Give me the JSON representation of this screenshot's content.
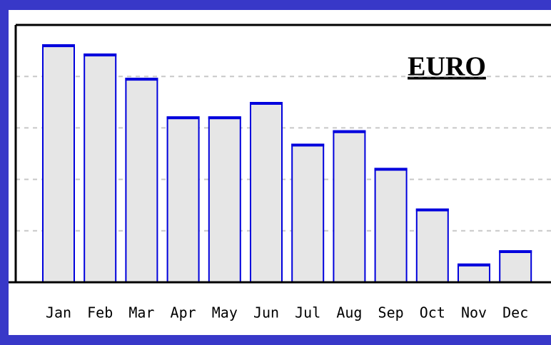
{
  "chart_data": {
    "type": "bar",
    "title": "EURO",
    "categories": [
      "Jan",
      "Feb",
      "Mar",
      "Apr",
      "May",
      "Jun",
      "Jul",
      "Aug",
      "Sep",
      "Oct",
      "Nov",
      "Dec"
    ],
    "values": [
      4.61,
      4.43,
      3.96,
      3.21,
      3.21,
      3.49,
      2.68,
      2.94,
      2.21,
      1.42,
      0.35,
      0.61
    ],
    "color": "#0000dd",
    "ylim": [
      0,
      5
    ],
    "yticks": [
      1,
      2,
      3,
      4
    ],
    "grid": true
  }
}
